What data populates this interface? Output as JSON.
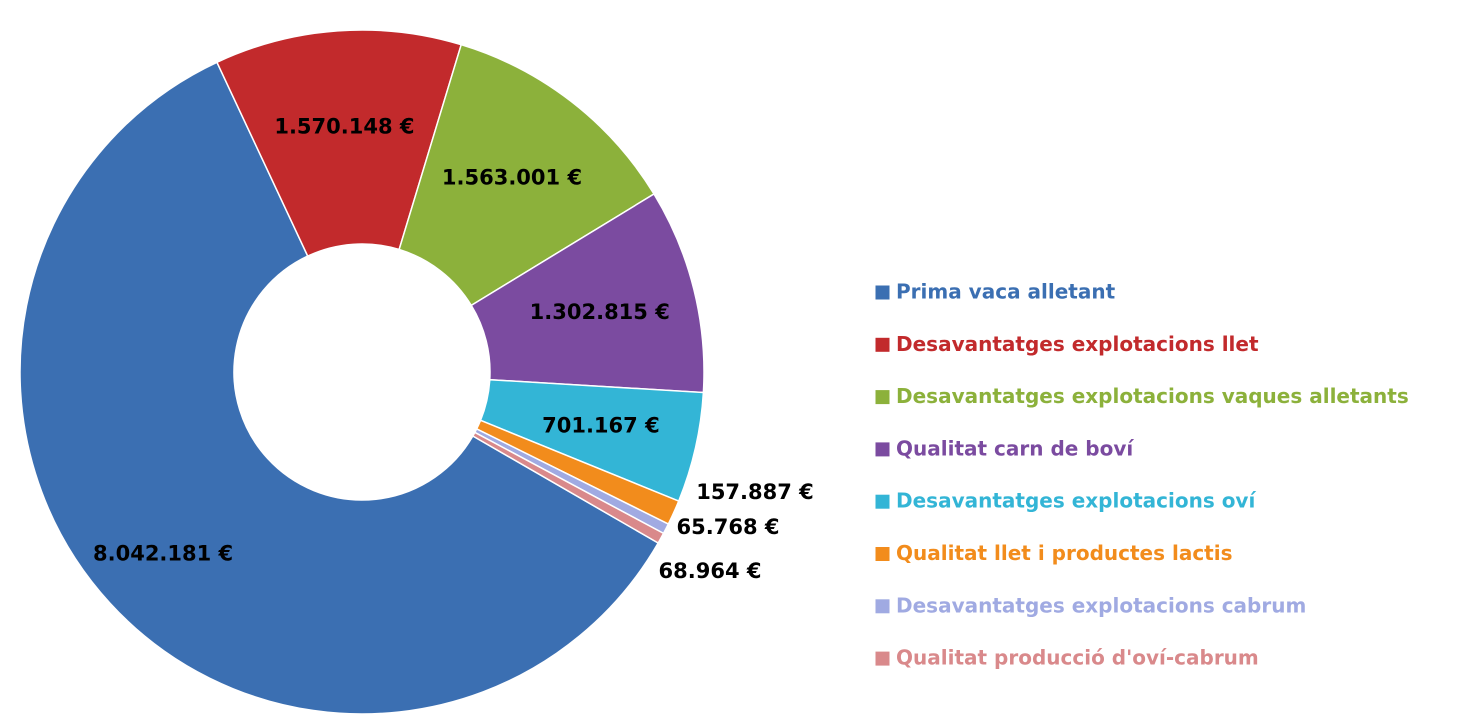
{
  "chart_data": {
    "type": "donut",
    "categories": [
      "Prima vaca alletant",
      "Desavantatges explotacions llet",
      "Desavantatges explotacions vaques alletants",
      "Qualitat carn de boví",
      "Desavantatges explotacions oví",
      "Qualitat llet i productes lactis",
      "Desavantatges explotacions cabrum",
      "Qualitat producció d'oví-cabrum"
    ],
    "values": [
      8042181,
      1570148,
      1563001,
      1302815,
      701167,
      157887,
      65768,
      68964
    ],
    "value_labels": [
      "8.042.181 €",
      "1.570.148 €",
      "1.563.001 €",
      "1.302.815 €",
      "701.167 €",
      "157.887 €",
      "65.768 €",
      "68.964 €"
    ],
    "colors": [
      "#3b6fb2",
      "#c22a2c",
      "#8cb13b",
      "#7b4ba0",
      "#33b5d6",
      "#f28c1c",
      "#a0aae2",
      "#d9898b"
    ],
    "legend": "right"
  }
}
